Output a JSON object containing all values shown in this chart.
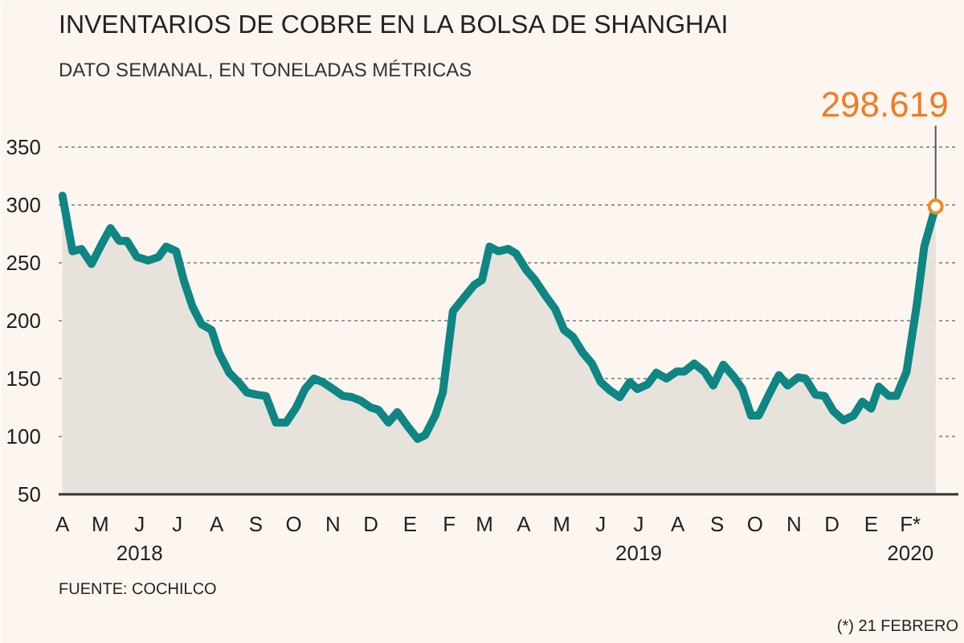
{
  "chart_data": {
    "type": "area",
    "title": "INVENTARIOS DE COBRE EN LA BOLSA DE SHANGHAI",
    "subtitle": "DATO SEMANAL, EN TONELADAS MÉTRICAS",
    "x": [
      "2018-04-01",
      "2018-04-09",
      "2018-04-16",
      "2018-04-24",
      "2018-05-02",
      "2018-05-09",
      "2018-05-16",
      "2018-05-22",
      "2018-05-30",
      "2018-06-08",
      "2018-06-16",
      "2018-06-22",
      "2018-06-30",
      "2018-07-06",
      "2018-07-13",
      "2018-07-20",
      "2018-07-28",
      "2018-08-03",
      "2018-08-11",
      "2018-08-19",
      "2018-08-25",
      "2018-09-02",
      "2018-09-09",
      "2018-09-17",
      "2018-09-25",
      "2018-10-03",
      "2018-10-10",
      "2018-10-17",
      "2018-10-24",
      "2018-11-01",
      "2018-11-09",
      "2018-11-16",
      "2018-11-23",
      "2018-12-01",
      "2018-12-07",
      "2018-12-15",
      "2018-12-22",
      "2018-12-30",
      "2019-01-07",
      "2019-01-13",
      "2019-01-21",
      "2019-01-27",
      "2019-02-04",
      "2019-02-12",
      "2019-02-21",
      "2019-02-27",
      "2019-03-05",
      "2019-03-12",
      "2019-03-20",
      "2019-03-26",
      "2019-04-03",
      "2019-04-10",
      "2019-04-18",
      "2019-04-26",
      "2019-05-03",
      "2019-05-10",
      "2019-05-18",
      "2019-05-25",
      "2019-06-01",
      "2019-06-08",
      "2019-06-16",
      "2019-06-24",
      "2019-06-30",
      "2019-07-08",
      "2019-07-15",
      "2019-07-23",
      "2019-07-31",
      "2019-08-06",
      "2019-08-14",
      "2019-08-22",
      "2019-08-29",
      "2019-09-06",
      "2019-09-14",
      "2019-09-21",
      "2019-09-28",
      "2019-10-04",
      "2019-10-12",
      "2019-10-20",
      "2019-10-27",
      "2019-11-04",
      "2019-11-10",
      "2019-11-18",
      "2019-11-25",
      "2019-12-02",
      "2019-12-10",
      "2019-12-18",
      "2019-12-25",
      "2020-01-01",
      "2020-01-07",
      "2020-01-15",
      "2020-01-21",
      "2020-01-29",
      "2020-02-06",
      "2020-02-12",
      "2020-02-21"
    ],
    "series": [
      {
        "color": "#0e8683",
        "values": [
          308,
          260,
          262,
          249,
          266,
          280,
          269,
          269,
          255,
          252,
          255,
          264,
          260,
          235,
          212,
          197,
          192,
          172,
          155,
          146,
          138,
          136,
          135,
          112,
          112,
          125,
          141,
          150,
          147,
          141,
          135,
          134,
          131,
          125,
          123,
          112,
          121,
          109,
          98,
          101,
          118,
          138,
          208,
          219,
          231,
          235,
          264,
          260,
          262,
          258,
          244,
          235,
          222,
          210,
          192,
          186,
          172,
          163,
          147,
          140,
          134,
          147,
          141,
          145,
          155,
          150,
          156,
          156,
          163,
          156,
          144,
          162,
          152,
          141,
          118,
          118,
          136,
          153,
          144,
          151,
          150,
          136,
          135,
          122,
          114,
          118,
          130,
          124,
          143,
          135,
          135,
          156,
          213,
          264,
          298.619
        ]
      }
    ],
    "ylim": [
      50,
      400
    ],
    "yticks": [
      50,
      100,
      150,
      200,
      250,
      300,
      350
    ],
    "xlim": [
      "2018-03-29",
      "2020-03-10"
    ],
    "xticks": [
      {
        "value": "2018-04-01",
        "label": "A"
      },
      {
        "value": "2018-05-01",
        "label": "M"
      },
      {
        "value": "2018-06-01",
        "label": "J\n2018"
      },
      {
        "value": "2018-07-01",
        "label": "J"
      },
      {
        "value": "2018-08-01",
        "label": "A"
      },
      {
        "value": "2018-09-01",
        "label": "S"
      },
      {
        "value": "2018-10-01",
        "label": "O"
      },
      {
        "value": "2018-11-01",
        "label": "N"
      },
      {
        "value": "2018-12-01",
        "label": "D"
      },
      {
        "value": "2019-01-01",
        "label": "E"
      },
      {
        "value": "2019-02-01",
        "label": "F"
      },
      {
        "value": "2019-03-01",
        "label": "M"
      },
      {
        "value": "2019-04-01",
        "label": "A"
      },
      {
        "value": "2019-05-01",
        "label": "M"
      },
      {
        "value": "2019-06-01",
        "label": "J"
      },
      {
        "value": "2019-07-01",
        "label": "J\n2019"
      },
      {
        "value": "2019-08-01",
        "label": "A"
      },
      {
        "value": "2019-09-01",
        "label": "S"
      },
      {
        "value": "2019-10-01",
        "label": "O"
      },
      {
        "value": "2019-11-01",
        "label": "N"
      },
      {
        "value": "2019-12-01",
        "label": "D"
      },
      {
        "value": "2020-01-01",
        "label": "E"
      },
      {
        "value": "2020-02-01",
        "label": "F*\n2020"
      }
    ],
    "grid": "y",
    "annotations": [
      {
        "text": "298.619",
        "x": "2020-02-21",
        "y": 298.619
      },
      "FUENTE: COCHILCO",
      "(*) 21 FEBRERO"
    ]
  }
}
